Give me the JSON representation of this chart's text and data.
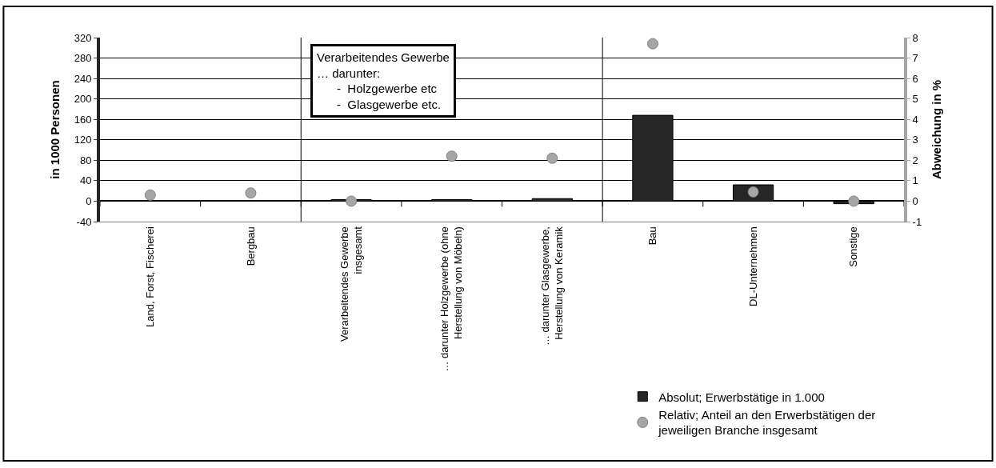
{
  "chart_data": {
    "type": "bar",
    "categories": [
      "Land, Forst, Fischerei",
      "Bergbau",
      "Verarbeitendes Gewerbe\ninsgesamt",
      "… darunter Holzgewerbe (ohne\nHerstellung von Möbeln)",
      "… darunter Glasgewerbe,\nHerstellung von Keramik",
      "Bau",
      "DL-Unternehmen",
      "Sonstige"
    ],
    "series": [
      {
        "name": "Absolut; Erwerbstätige in 1.000",
        "color": "#262626",
        "values": [
          1,
          1,
          3,
          3,
          5,
          168,
          32,
          -5
        ]
      },
      {
        "name": "Relativ; Anteil an den Erwerbstätigen der\njeweiligen Branche insgesamt",
        "type": "scatter",
        "axis": "y2",
        "color": "#a6a6a6",
        "marker": "circle",
        "values": [
          0.3,
          0.4,
          0.0,
          2.2,
          2.1,
          7.7,
          0.45,
          0.0
        ]
      }
    ],
    "ylabel": "in 1000 Personen",
    "y2label": "Abweichung in %",
    "ylim": [
      -40,
      320
    ],
    "yticks": [
      -40,
      0,
      40,
      80,
      120,
      160,
      200,
      240,
      280,
      320
    ],
    "y2lim": [
      -1,
      8
    ],
    "y2ticks": [
      -1,
      0,
      1,
      2,
      3,
      4,
      5,
      6,
      7,
      8
    ],
    "annotations": [
      "Verarbeitendes Gewerbe\n… darunter:\n      -  Holzgewerbe etc\n      -  Glasgewerbe etc."
    ],
    "grid": "y",
    "legend": "bottom right"
  }
}
